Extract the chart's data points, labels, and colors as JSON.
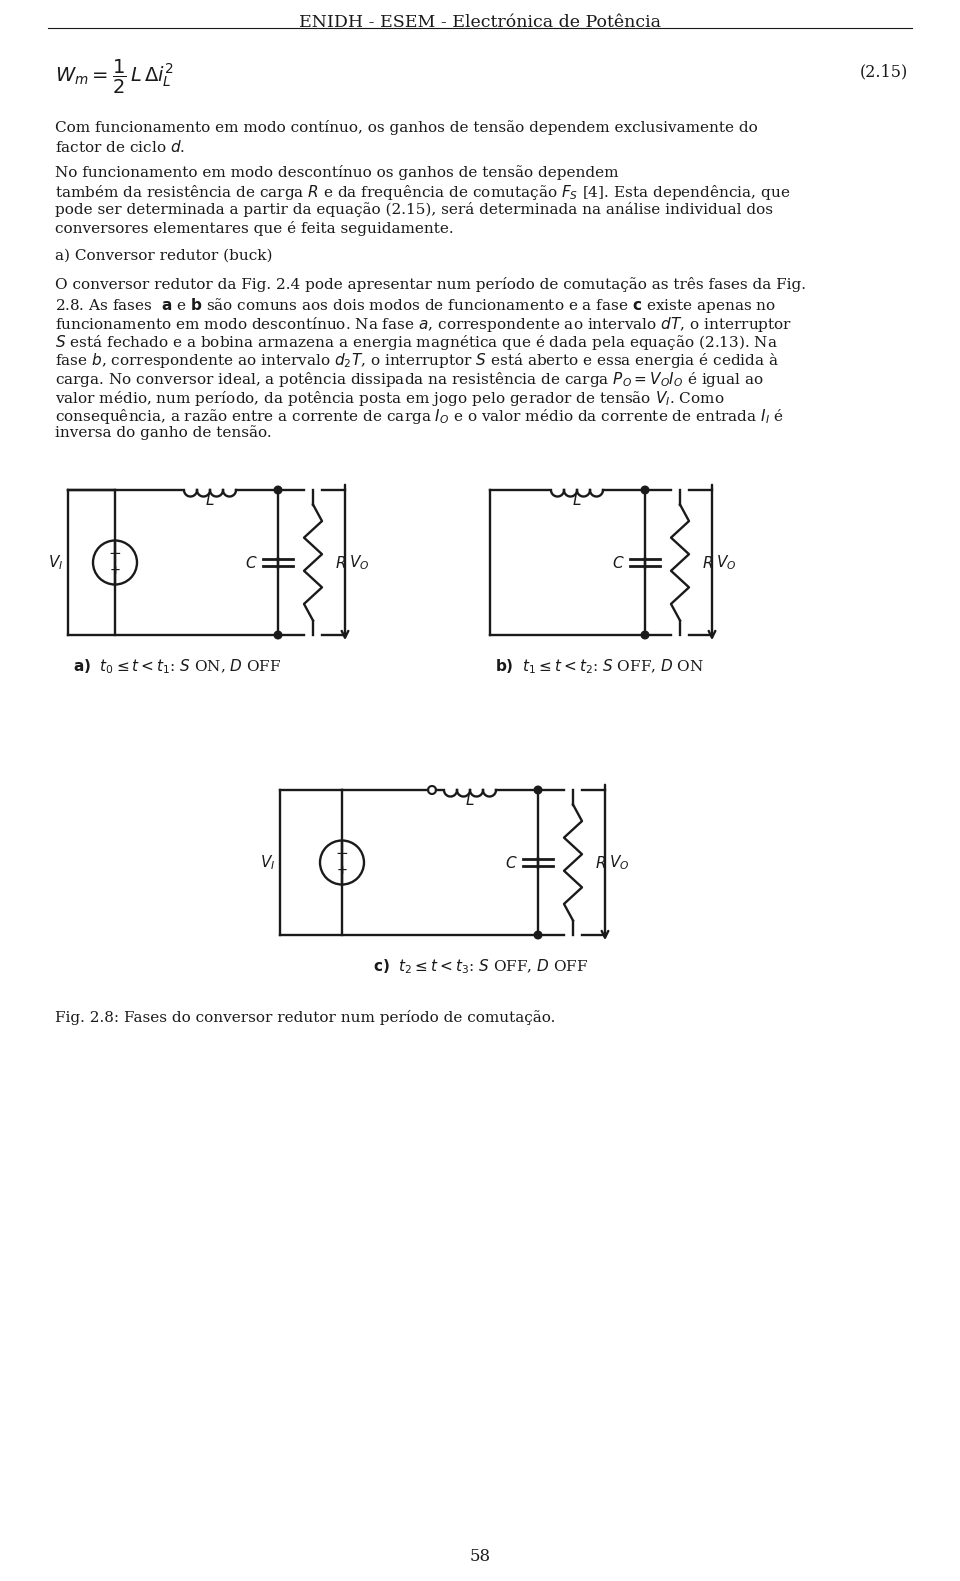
{
  "title": "ENIDH - ESEM - Electrónica de Potência",
  "page_number": "58",
  "background_color": "#ffffff",
  "text_color": "#1a1a1a",
  "line_color": "#1a1a1a",
  "fig_caption": "Fig. 2.8: Fases do conversor redutor num período de comutação.",
  "body_fontsize": 11.0,
  "header_fontsize": 12.5,
  "eq_fontsize": 13,
  "circuit_lw": 1.7
}
